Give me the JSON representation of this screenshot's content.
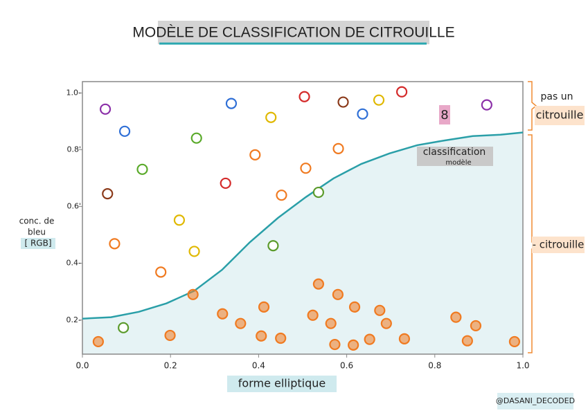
{
  "chart_data": {
    "type": "scatter",
    "title": "MODÈLE DE CLASSIFICATION DE CITROUILLE",
    "xlabel": "forme elliptique",
    "ylabel": [
      "conc. de",
      "bleu",
      "[ RGB]"
    ],
    "xlim": [
      0,
      1
    ],
    "ylim": [
      0.08,
      1.04
    ],
    "xticks": [
      {
        "value": 0,
        "label": "0.0"
      },
      0.2,
      0.4,
      0.6,
      0.8,
      {
        "value": 1,
        "label": "1.0"
      }
    ],
    "yticks": [
      {
        "value": 0.2,
        "label": "0.2-"
      },
      {
        "value": 0.4,
        "label": "0.4-"
      },
      {
        "value": 0.6,
        "label": "0.6'"
      },
      {
        "value": 0.8,
        "label": "0.8'"
      },
      {
        "value": 1,
        "label": "1.0-"
      }
    ],
    "curve": {
      "color": "#2a9fa8",
      "fill": "#e6f3f5",
      "x": [
        0,
        0.065,
        0.128,
        0.191,
        0.254,
        0.317,
        0.38,
        0.444,
        0.507,
        0.57,
        0.633,
        0.697,
        0.76,
        0.823,
        0.886,
        0.949,
        1.0
      ],
      "y": [
        0.205,
        0.21,
        0.229,
        0.259,
        0.303,
        0.377,
        0.474,
        0.56,
        0.633,
        0.699,
        0.75,
        0.787,
        0.816,
        0.833,
        0.848,
        0.853,
        0.861
      ]
    },
    "series": [
      {
        "colors": [
          "#8b2fa8",
          "#2f6fd6",
          "#5aaa2a",
          "#5aaa2a",
          "#8b3a1a",
          "#e0b800",
          "#f07a20",
          "#e0b800",
          "#f07a20",
          "#2f6fd6",
          "#e0b800",
          "#d42a2a",
          "#8b3a1a",
          "#2f6fd6",
          "#e0b800",
          "#d42a2a",
          "#8b2fa8",
          "#f07a20",
          "#d42a2a",
          "#f07a20",
          "#f07a20",
          "#f07a20",
          "#5a9a2a",
          "#5a9a2a",
          "#5a9a2a"
        ],
        "x": [
          0.052,
          0.096,
          0.259,
          0.136,
          0.057,
          0.22,
          0.073,
          0.254,
          0.178,
          0.338,
          0.428,
          0.504,
          0.592,
          0.636,
          0.673,
          0.725,
          0.918,
          0.392,
          0.325,
          0.507,
          0.581,
          0.452,
          0.536,
          0.433,
          0.093
        ],
        "values": [
          0.943,
          0.865,
          0.841,
          0.731,
          0.645,
          0.552,
          0.469,
          0.442,
          0.369,
          0.963,
          0.914,
          0.987,
          0.968,
          0.926,
          0.975,
          1.004,
          0.958,
          0.782,
          0.682,
          0.735,
          0.804,
          0.64,
          0.65,
          0.462,
          0.173
        ]
      },
      {
        "color": "#f07a20",
        "x": [
          0.251,
          0.036,
          0.199,
          0.318,
          0.359,
          0.412,
          0.406,
          0.45,
          0.523,
          0.536,
          0.58,
          0.564,
          0.573,
          0.615,
          0.618,
          0.652,
          0.675,
          0.69,
          0.731,
          0.848,
          0.874,
          0.893,
          0.981
        ],
        "values": [
          0.29,
          0.124,
          0.146,
          0.222,
          0.188,
          0.246,
          0.144,
          0.136,
          0.217,
          0.327,
          0.29,
          0.188,
          0.114,
          0.112,
          0.246,
          0.132,
          0.234,
          0.188,
          0.134,
          0.21,
          0.127,
          0.18,
          0.124
        ]
      }
    ],
    "annotations": {
      "model": [
        "classification",
        "modèle"
      ],
      "not_pumpkin": [
        "pas un",
        "citrouille"
      ],
      "pumpkin": "- citrouille",
      "eight": "8",
      "credit": "@DASANI_DECODED"
    }
  }
}
